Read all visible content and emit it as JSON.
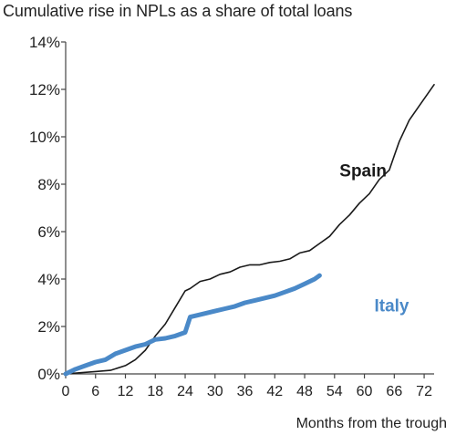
{
  "chart_data": {
    "type": "line",
    "title": "Cumulative rise in NPLs as a share of total loans",
    "xlabel": "Months from the trough",
    "ylabel": "",
    "xlim": [
      0,
      74
    ],
    "ylim": [
      0,
      14
    ],
    "x_ticks": [
      0,
      6,
      12,
      18,
      24,
      30,
      36,
      42,
      48,
      54,
      60,
      66,
      72
    ],
    "y_ticks": [
      0,
      2,
      4,
      6,
      8,
      10,
      12,
      14
    ],
    "y_tick_labels": [
      "0%",
      "2%",
      "4%",
      "6%",
      "8%",
      "10%",
      "12%",
      "14%"
    ],
    "grid": false,
    "legend": "none (series labelled directly on chart)",
    "series": [
      {
        "name": "Spain",
        "color": "#1a1a1a",
        "x": [
          0,
          3,
          6,
          9,
          12,
          14,
          16,
          18,
          20,
          22,
          24,
          25,
          27,
          29,
          31,
          33,
          35,
          37,
          39,
          41,
          43,
          45,
          47,
          49,
          51,
          53,
          55,
          57,
          59,
          61,
          63,
          65,
          66,
          67,
          69,
          71,
          74
        ],
        "y": [
          0,
          0.05,
          0.1,
          0.15,
          0.35,
          0.6,
          1.0,
          1.6,
          2.1,
          2.8,
          3.5,
          3.6,
          3.9,
          4.0,
          4.2,
          4.3,
          4.5,
          4.6,
          4.6,
          4.7,
          4.75,
          4.85,
          5.1,
          5.2,
          5.5,
          5.8,
          6.3,
          6.7,
          7.2,
          7.6,
          8.2,
          8.6,
          9.2,
          9.8,
          10.7,
          11.3,
          12.2
        ]
      },
      {
        "name": "Italy",
        "color": "#4a89c8",
        "x": [
          0,
          2,
          4,
          6,
          8,
          10,
          12,
          14,
          16,
          18,
          20,
          22,
          24,
          25,
          26,
          28,
          30,
          32,
          34,
          36,
          38,
          40,
          42,
          44,
          46,
          48,
          50,
          51
        ],
        "y": [
          0,
          0.2,
          0.35,
          0.5,
          0.6,
          0.85,
          1.0,
          1.15,
          1.25,
          1.45,
          1.5,
          1.6,
          1.75,
          2.4,
          2.45,
          2.55,
          2.65,
          2.75,
          2.85,
          3.0,
          3.1,
          3.2,
          3.3,
          3.45,
          3.6,
          3.8,
          4.0,
          4.15
        ]
      }
    ],
    "annotations": [
      {
        "text": "Spain",
        "x": 55,
        "y": 8.6,
        "color": "#1a1a1a"
      },
      {
        "text": "Italy",
        "x": 62,
        "y": 2.9,
        "color": "#4a89c8"
      }
    ]
  }
}
